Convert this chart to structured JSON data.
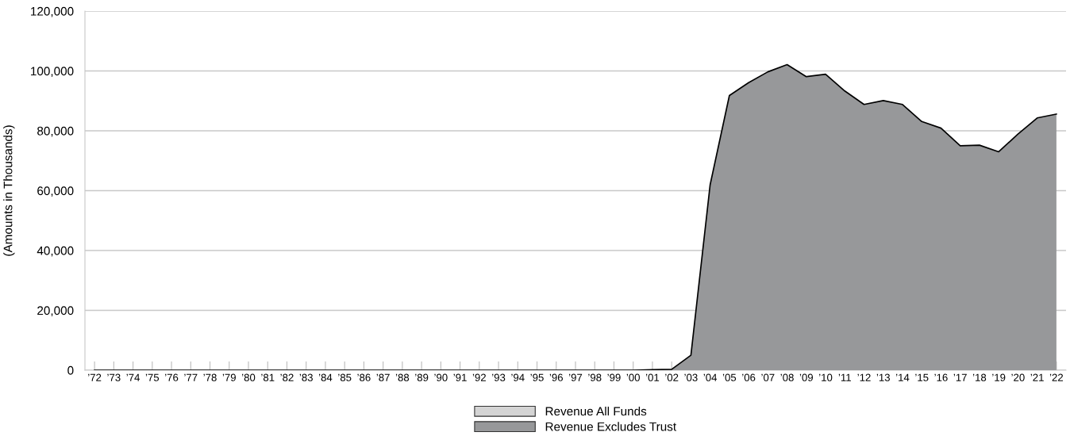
{
  "chart_data": {
    "type": "area",
    "ylabel": "(Amounts in Thousands)",
    "categories": [
      "’72",
      "’73",
      "’74",
      "’75",
      "’76",
      "’77",
      "’78",
      "’79",
      "’80",
      "’81",
      "’82",
      "’83",
      "’84",
      "’85",
      "’86",
      "’87",
      "’88",
      "’89",
      "’90",
      "’91",
      "’92",
      "’93",
      "’94",
      "’95",
      "’96",
      "’97",
      "’98",
      "’99",
      "’00",
      "’01",
      "’02",
      "’03",
      "’04",
      "’05",
      "’06",
      "’07",
      "’08",
      "’09",
      "’10",
      "’11",
      "’12",
      "’13",
      "’14",
      "’15",
      "’16",
      "’17",
      "’18",
      "’19",
      "’20",
      "’21",
      "’22"
    ],
    "series": [
      {
        "name": "Revenue All Funds",
        "color": "#d4d4d4",
        "values": [
          null,
          null,
          null,
          null,
          null,
          null,
          null,
          null,
          null,
          null,
          null,
          null,
          null,
          null,
          null,
          null,
          null,
          null,
          null,
          null,
          null,
          null,
          null,
          null,
          null,
          null,
          null,
          null,
          null,
          null,
          null,
          null,
          null,
          null,
          null,
          null,
          null,
          null,
          null,
          null,
          null,
          null,
          null,
          null,
          null,
          null,
          null,
          null,
          null,
          null,
          null
        ]
      },
      {
        "name": "Revenue Excludes Trust",
        "color": "#97989a",
        "values": [
          0,
          0,
          0,
          0,
          0,
          0,
          0,
          0,
          0,
          0,
          0,
          0,
          0,
          0,
          0,
          0,
          0,
          0,
          0,
          0,
          0,
          0,
          0,
          0,
          0,
          0,
          0,
          0,
          0,
          200,
          300,
          5000,
          62000,
          91800,
          96100,
          99700,
          102100,
          98100,
          98900,
          93300,
          88800,
          90100,
          88800,
          83100,
          80900,
          75000,
          75200,
          73000,
          78900,
          84300,
          85600
        ]
      }
    ],
    "ylim": [
      0,
      120000
    ],
    "yticks": [
      0,
      {
        "value": 20000,
        "label": "20,000"
      },
      {
        "value": 40000,
        "label": "40,000"
      },
      {
        "value": 60000,
        "label": "60,000"
      },
      {
        "value": 80000,
        "label": "80,000"
      },
      {
        "value": 100000,
        "label": "100,000"
      },
      {
        "value": 120000,
        "label": "120,000"
      }
    ],
    "grid": "y",
    "legend": "bottom"
  }
}
